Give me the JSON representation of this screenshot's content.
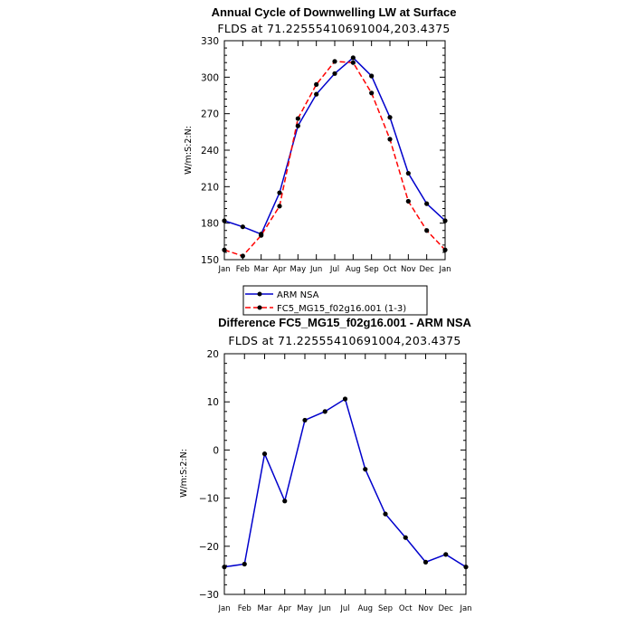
{
  "chart_data": [
    {
      "type": "line",
      "title": "Annual Cycle of Downwelling LW at Surface",
      "subtitle": "FLDS at 71.22555410691004,203.4375",
      "ylabel": "W/m:S:2:N:",
      "xlabel": "",
      "categories": [
        "Jan",
        "Feb",
        "Mar",
        "Apr",
        "May",
        "Jun",
        "Jul",
        "Aug",
        "Sep",
        "Oct",
        "Nov",
        "Dec",
        "Jan"
      ],
      "ylim": [
        150,
        330
      ],
      "yticks": [
        150,
        180,
        210,
        240,
        270,
        300,
        330
      ],
      "series": [
        {
          "name": "ARM NSA",
          "color": "#0000cc",
          "dash": "solid",
          "values": [
            182,
            177,
            171,
            205,
            260,
            286,
            303,
            316,
            301,
            267,
            221,
            196,
            182
          ]
        },
        {
          "name": "FC5_MG15_f02g16.001 (1-3)",
          "color": "#ff0000",
          "dash": "dashed",
          "values": [
            158,
            153,
            170,
            194,
            266,
            294,
            313,
            312,
            287,
            249,
            198,
            174,
            158
          ]
        }
      ]
    },
    {
      "type": "line",
      "title": "Difference FC5_MG15_f02g16.001 - ARM NSA",
      "subtitle": "FLDS at 71.22555410691004,203.4375",
      "ylabel": "W/m:S:2:N:",
      "xlabel": "",
      "categories": [
        "Jan",
        "Feb",
        "Mar",
        "Apr",
        "May",
        "Jun",
        "Jul",
        "Aug",
        "Sep",
        "Oct",
        "Nov",
        "Dec",
        "Jan"
      ],
      "ylim": [
        -30,
        20
      ],
      "yticks": [
        -30,
        -20,
        -10,
        0,
        10,
        20
      ],
      "series": [
        {
          "name": "",
          "color": "#0000cc",
          "dash": "solid",
          "values": [
            -24.3,
            -23.7,
            -0.8,
            -10.6,
            6.2,
            8.0,
            10.6,
            -4.0,
            -13.3,
            -18.2,
            -23.3,
            -21.7,
            -24.3
          ]
        }
      ]
    }
  ]
}
